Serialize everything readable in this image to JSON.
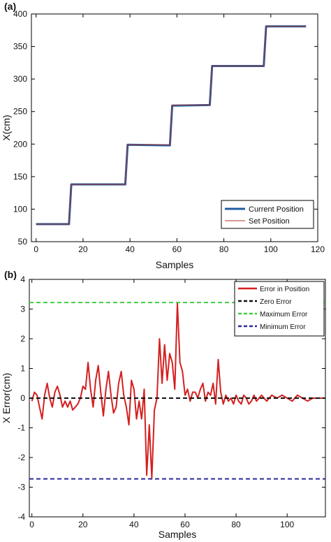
{
  "chart_data": [
    {
      "type": "line",
      "panel_label": "(a)",
      "xlabel": "Samples",
      "ylabel": "X(cm)",
      "xlim": [
        -2,
        120
      ],
      "ylim": [
        50,
        400
      ],
      "xticks": [
        0,
        20,
        40,
        60,
        80,
        100,
        120
      ],
      "yticks": [
        50,
        100,
        150,
        200,
        250,
        300,
        350,
        400
      ],
      "legend_position": "bottom-right",
      "grid": false,
      "series": [
        {
          "name": "Current Position",
          "color": "#1f5fa0",
          "x": [
            0,
            14,
            15,
            38,
            39,
            57,
            58,
            74,
            75,
            97,
            98,
            115
          ],
          "y": [
            77,
            77,
            138,
            138,
            199,
            198,
            259,
            260,
            320,
            320,
            381,
            381
          ]
        },
        {
          "name": "Set Position",
          "color": "#b03030",
          "x": [
            0,
            14,
            15,
            38,
            39,
            57,
            58,
            74,
            75,
            97,
            98,
            115
          ],
          "y": [
            77,
            77,
            138,
            138,
            199,
            199,
            260,
            260,
            320,
            320,
            381,
            381
          ]
        }
      ]
    },
    {
      "type": "line",
      "panel_label": "(b)",
      "xlabel": "Samples",
      "ylabel": "X Error(cm)",
      "xlim": [
        -1,
        115
      ],
      "ylim": [
        -4,
        4
      ],
      "xticks": [
        0,
        20,
        40,
        60,
        80,
        100
      ],
      "yticks": [
        -4,
        -3,
        -2,
        -1,
        0,
        1,
        2,
        3,
        4
      ],
      "legend_position": "top-right",
      "grid": false,
      "series": [
        {
          "name": "Error in Position",
          "color": "#d42020",
          "x": [
            0,
            1,
            2,
            3,
            4,
            5,
            6,
            7,
            8,
            9,
            10,
            11,
            12,
            13,
            14,
            15,
            16,
            17,
            18,
            19,
            20,
            21,
            22,
            23,
            24,
            25,
            26,
            27,
            28,
            29,
            30,
            31,
            32,
            33,
            34,
            35,
            36,
            37,
            38,
            39,
            40,
            41,
            42,
            43,
            44,
            45,
            46,
            47,
            48,
            49,
            50,
            51,
            52,
            53,
            54,
            55,
            56,
            57,
            58,
            59,
            60,
            61,
            62,
            63,
            64,
            65,
            66,
            67,
            68,
            69,
            70,
            71,
            72,
            73,
            74,
            75,
            76,
            77,
            78,
            79,
            80,
            81,
            82,
            83,
            84,
            85,
            86,
            87,
            88,
            89,
            90,
            92,
            94,
            96,
            98,
            100,
            102,
            104,
            106,
            108,
            110,
            112,
            114
          ],
          "y": [
            -0.1,
            0.2,
            0.1,
            -0.3,
            -0.7,
            0.1,
            0.5,
            0.0,
            -0.3,
            0.2,
            0.4,
            0.1,
            -0.3,
            -0.1,
            -0.3,
            -0.1,
            -0.4,
            -0.3,
            -0.2,
            0.0,
            0.4,
            0.3,
            1.2,
            0.3,
            -0.3,
            0.6,
            1.1,
            0.2,
            -0.6,
            0.3,
            0.9,
            0.1,
            -0.5,
            -0.3,
            0.5,
            0.9,
            0.1,
            -0.3,
            -0.9,
            0.6,
            0.3,
            -0.7,
            -0.1,
            -0.7,
            0.3,
            -2.6,
            -0.9,
            -2.7,
            -0.4,
            0.0,
            2.0,
            0.5,
            1.8,
            0.6,
            1.5,
            1.2,
            0.3,
            3.2,
            1.2,
            0.9,
            0.1,
            0.3,
            -0.1,
            0.2,
            0.2,
            0.0,
            0.3,
            0.5,
            -0.1,
            0.2,
            0.1,
            0.5,
            -0.2,
            1.3,
            0.2,
            -0.2,
            0.1,
            -0.1,
            0.0,
            -0.2,
            0.1,
            -0.1,
            -0.2,
            0.1,
            0.0,
            -0.2,
            -0.1,
            0.1,
            -0.1,
            0.0,
            0.1,
            -0.1,
            0.1,
            0.0,
            0.1,
            0.0,
            -0.1,
            0.1,
            0.0,
            -0.1,
            0.0,
            0.0,
            0.0
          ]
        },
        {
          "name": "Zero Error",
          "color": "#111111",
          "style": "dashed",
          "x": [
            -1,
            115
          ],
          "y": [
            0,
            0
          ]
        },
        {
          "name": "Maximum Error",
          "color": "#44cc44",
          "style": "dashed",
          "x": [
            -1,
            115
          ],
          "y": [
            3.22,
            3.22
          ]
        },
        {
          "name": "Minimum Error",
          "color": "#2a2a99",
          "style": "dashed",
          "x": [
            -1,
            115
          ],
          "y": [
            -2.72,
            -2.72
          ]
        }
      ]
    }
  ]
}
